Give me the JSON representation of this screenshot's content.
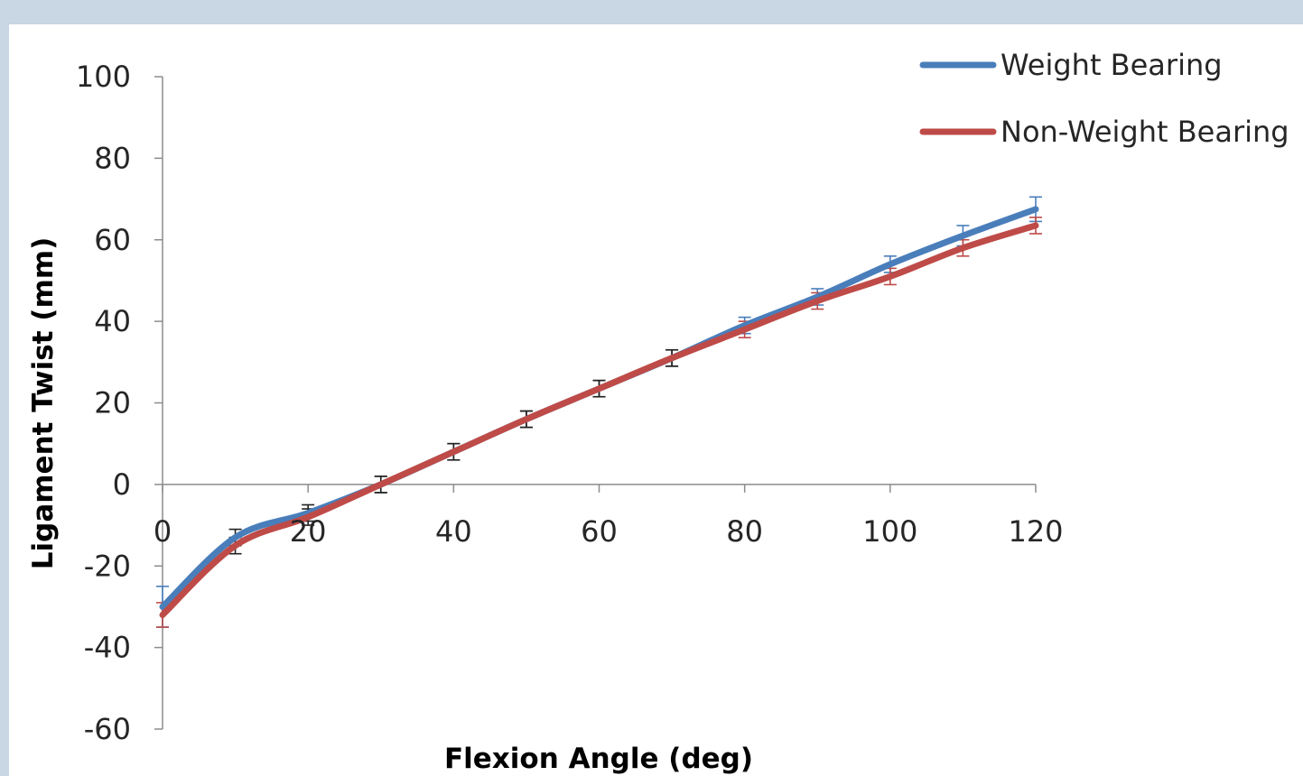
{
  "chart_data": {
    "type": "line",
    "title": "",
    "xlabel": "Flexion Angle (deg)",
    "ylabel": "Ligament Twist (mm)",
    "xlim": [
      0,
      120
    ],
    "ylim": [
      -60,
      100
    ],
    "x_ticks": [
      "0",
      "20",
      "40",
      "60",
      "80",
      "100",
      "120"
    ],
    "y_ticks": [
      "100",
      "80",
      "60",
      "40",
      "20",
      "0",
      "-20",
      "-40",
      "-60"
    ],
    "grid": false,
    "legend_position": "top-right",
    "x": [
      0,
      10,
      20,
      30,
      40,
      50,
      60,
      70,
      80,
      90,
      100,
      110,
      120
    ],
    "series": [
      {
        "name": "Weight Bearing",
        "color": "#4a7ebb",
        "values": [
          -30,
          -13,
          -7,
          0,
          8,
          16,
          23.5,
          31,
          39,
          46,
          54,
          61,
          67.5
        ],
        "errors": [
          5,
          2,
          2,
          2,
          2,
          2,
          2,
          2,
          2,
          2,
          2,
          2.5,
          3
        ]
      },
      {
        "name": "Non-Weight Bearing",
        "color": "#be4b48",
        "values": [
          -32,
          -15,
          -8,
          0,
          8,
          16,
          23.5,
          31,
          38,
          45,
          51,
          58,
          63.5
        ],
        "errors": [
          3,
          2,
          2,
          2,
          2,
          2,
          2,
          2,
          2,
          2,
          2,
          2,
          2
        ]
      }
    ]
  }
}
